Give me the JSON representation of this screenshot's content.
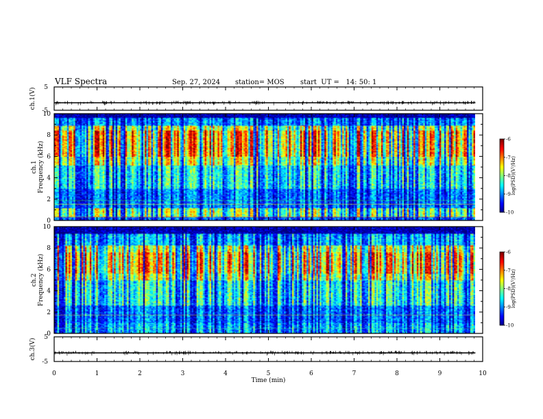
{
  "header": {
    "title": "VLF Spectra",
    "date": "Sep. 27, 2024",
    "station": "station= MOS",
    "start": "start  UT =   14: 50: 1"
  },
  "chart_data": [
    {
      "type": "line",
      "panel": "ch1-waveform",
      "ylabel": "ch.1(V)",
      "ylim": [
        -5,
        5
      ],
      "y_ticks": [
        "5",
        "-5"
      ],
      "xlim": [
        0,
        10
      ],
      "x_data_end": 9.83,
      "series": [
        {
          "values": [
            -1.8,
            -1.8
          ]
        }
      ]
    },
    {
      "type": "heatmap",
      "panel": "ch1-spectrogram",
      "ylabel": [
        "ch.1",
        "Frequency (kHz)"
      ],
      "ylim": [
        0,
        10
      ],
      "y_ticks": [
        "0",
        "2",
        "4",
        "6",
        "8",
        "10"
      ],
      "xlim": [
        0,
        10
      ],
      "x_data_end": 9.83,
      "colorbar": {
        "label": "log(PSD)(V²/Hz)",
        "range": [
          -10,
          -6
        ],
        "ticks": [
          "-6",
          "-7",
          "-8",
          "-9",
          "-10"
        ]
      }
    },
    {
      "type": "heatmap",
      "panel": "ch2-spectrogram",
      "ylabel": [
        "ch.2",
        "Frequency (kHz)"
      ],
      "ylim": [
        0,
        10
      ],
      "y_ticks": [
        "0",
        "2",
        "4",
        "6",
        "8",
        "10"
      ],
      "xlim": [
        0,
        10
      ],
      "x_data_end": 9.83,
      "colorbar": {
        "label": "log(PSD)(V²/Hz)",
        "range": [
          -10,
          -6
        ],
        "ticks": [
          "-6",
          "-7",
          "-8",
          "-9",
          "-10"
        ]
      }
    },
    {
      "type": "line",
      "panel": "ch3-waveform",
      "ylabel": "ch.3(V)",
      "ylim": [
        -5,
        5
      ],
      "y_ticks": [
        "5",
        "-5"
      ],
      "xlim": [
        0,
        10
      ],
      "x_data_end": 9.83,
      "xlabel": "Time  (min)",
      "x_ticks": [
        "0",
        "1",
        "2",
        "3",
        "4",
        "5",
        "6",
        "7",
        "8",
        "9",
        "10"
      ],
      "series": [
        {
          "values": [
            -1.5,
            -1.5
          ]
        }
      ]
    }
  ]
}
